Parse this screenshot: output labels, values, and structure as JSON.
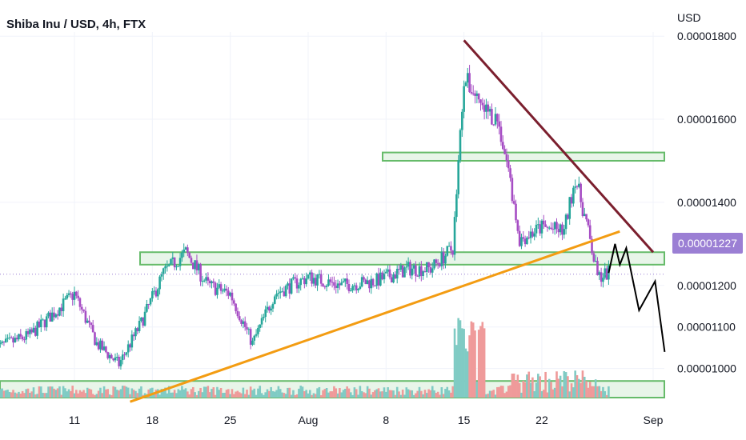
{
  "header": {
    "title": "Shiba Inu / USD, 4h, FTX",
    "currency": "USD"
  },
  "last_price_label": "0.00001227",
  "colors": {
    "up": "#26a69a",
    "down": "#a64dc4",
    "zone_stroke": "#66bb6a",
    "zone_fill": "#e8f5e9",
    "resistance_line": "#7b1f2e",
    "support_line": "#f39c12",
    "projection": "#000000",
    "price_tag": "#9b7fd4",
    "vol_up": "#80cbc4",
    "vol_down": "#ef9a9a"
  },
  "chart_data": {
    "type": "candlestick",
    "title": "Shiba Inu / USD, 4h, FTX",
    "ylabel": "USD",
    "ylim": [
      9.3e-06,
      1.81e-05
    ],
    "x_tick_labels": [
      "11",
      "18",
      "25",
      "Aug",
      "8",
      "15",
      "22",
      "Sep"
    ],
    "y_tick_labels": [
      "0.00001000",
      "0.00001100",
      "0.00001200",
      "0.00001400",
      "0.00001600",
      "0.00001800"
    ],
    "last_price": 1.227e-05,
    "close_anchors": [
      {
        "date": "2021-07-04",
        "close": 1.05e-05
      },
      {
        "date": "2021-07-07",
        "close": 1.08e-05
      },
      {
        "date": "2021-07-09",
        "close": 1.13e-05
      },
      {
        "date": "2021-07-11",
        "close": 1.18e-05
      },
      {
        "date": "2021-07-13",
        "close": 1.06e-05
      },
      {
        "date": "2021-07-15",
        "close": 1.01e-05
      },
      {
        "date": "2021-07-17",
        "close": 1.11e-05
      },
      {
        "date": "2021-07-19",
        "close": 1.23e-05
      },
      {
        "date": "2021-07-21",
        "close": 1.28e-05
      },
      {
        "date": "2021-07-23",
        "close": 1.2e-05
      },
      {
        "date": "2021-07-25",
        "close": 1.18e-05
      },
      {
        "date": "2021-07-27",
        "close": 1.06e-05
      },
      {
        "date": "2021-07-29",
        "close": 1.18e-05
      },
      {
        "date": "2021-08-01",
        "close": 1.22e-05
      },
      {
        "date": "2021-08-04",
        "close": 1.2e-05
      },
      {
        "date": "2021-08-07",
        "close": 1.21e-05
      },
      {
        "date": "2021-08-10",
        "close": 1.24e-05
      },
      {
        "date": "2021-08-12",
        "close": 1.24e-05
      },
      {
        "date": "2021-08-14",
        "close": 1.29e-05
      },
      {
        "date": "2021-08-15",
        "close": 1.7e-05
      },
      {
        "date": "2021-08-17",
        "close": 1.62e-05
      },
      {
        "date": "2021-08-18",
        "close": 1.6e-05
      },
      {
        "date": "2021-08-19",
        "close": 1.48e-05
      },
      {
        "date": "2021-08-20",
        "close": 1.31e-05
      },
      {
        "date": "2021-08-22",
        "close": 1.34e-05
      },
      {
        "date": "2021-08-24",
        "close": 1.33e-05
      },
      {
        "date": "2021-08-25",
        "close": 1.46e-05
      },
      {
        "date": "2021-08-26",
        "close": 1.35e-05
      },
      {
        "date": "2021-08-27",
        "close": 1.22e-05
      },
      {
        "date": "2021-08-28",
        "close": 1.23e-05
      }
    ],
    "horizontal_zones": [
      {
        "y_low": 1.5e-05,
        "y_high": 1.52e-05
      },
      {
        "y_low": 1.25e-05,
        "y_high": 1.28e-05
      },
      {
        "y_low": 9.3e-06,
        "y_high": 9.7e-06
      }
    ],
    "trendlines": [
      {
        "name": "resistance",
        "points": [
          [
            "2021-08-15",
            1.79e-05
          ],
          [
            "2021-09-01",
            1.28e-05
          ]
        ]
      },
      {
        "name": "support",
        "points": [
          [
            "2021-07-16",
            9.2e-06
          ],
          [
            "2021-08-29",
            1.33e-05
          ]
        ]
      }
    ],
    "projection_path": [
      [
        "2021-08-28",
        1.23e-05
      ],
      [
        "2021-08-29",
        1.3e-05
      ],
      [
        "2021-08-29",
        1.25e-05
      ],
      [
        "2021-08-30",
        1.29e-05
      ],
      [
        "2021-08-31",
        1.14e-05
      ],
      [
        "2021-08-31",
        1.21e-05
      ],
      [
        "2021-09-01",
        1.04e-05
      ]
    ]
  }
}
